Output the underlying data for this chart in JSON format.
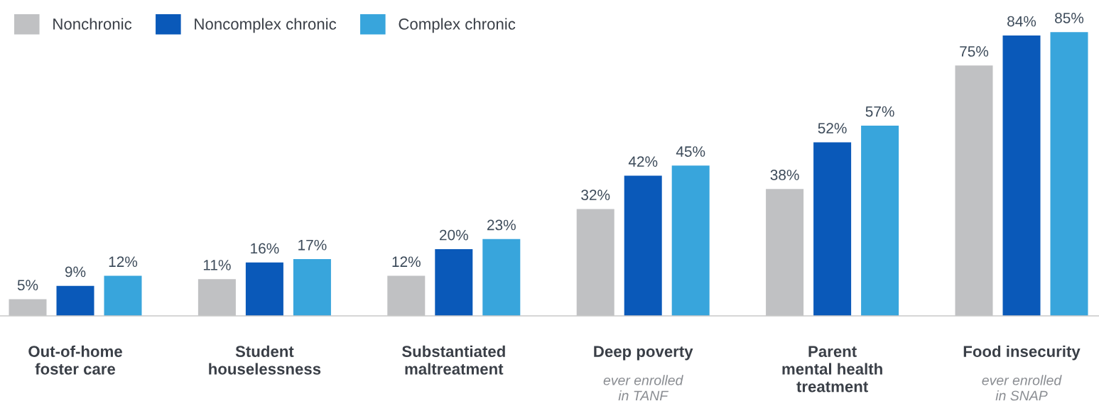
{
  "chart_data": {
    "type": "bar",
    "categories": [
      "Out-of-home\nfoster care",
      "Student\nhouselessness",
      "Substantiated\nmaltreatment",
      "Deep poverty",
      "Parent\nmental health\ntreatment",
      "Food insecurity"
    ],
    "series": [
      {
        "name": "Nonchronic",
        "color": "#c0c1c3",
        "values": [
          5,
          11,
          12,
          32,
          38,
          75
        ],
        "value_labels": [
          "5%",
          "11%",
          "12%",
          "32%",
          "38%",
          "75%"
        ]
      },
      {
        "name": "Noncomplex chronic",
        "color": "#0a59b9",
        "values": [
          9,
          16,
          20,
          42,
          52,
          84
        ],
        "value_labels": [
          "9%",
          "16%",
          "20%",
          "42%",
          "52%",
          "84%"
        ]
      },
      {
        "name": "Complex chronic",
        "color": "#38a5dc",
        "values": [
          12,
          17,
          23,
          45,
          57,
          85
        ],
        "value_labels": [
          "12%",
          "17%",
          "23%",
          "45%",
          "57%",
          "85%"
        ]
      }
    ],
    "legend": "top left",
    "annotations": [
      "ever enrolled\nin TANF",
      "ever enrolled\nin SNAP"
    ]
  }
}
